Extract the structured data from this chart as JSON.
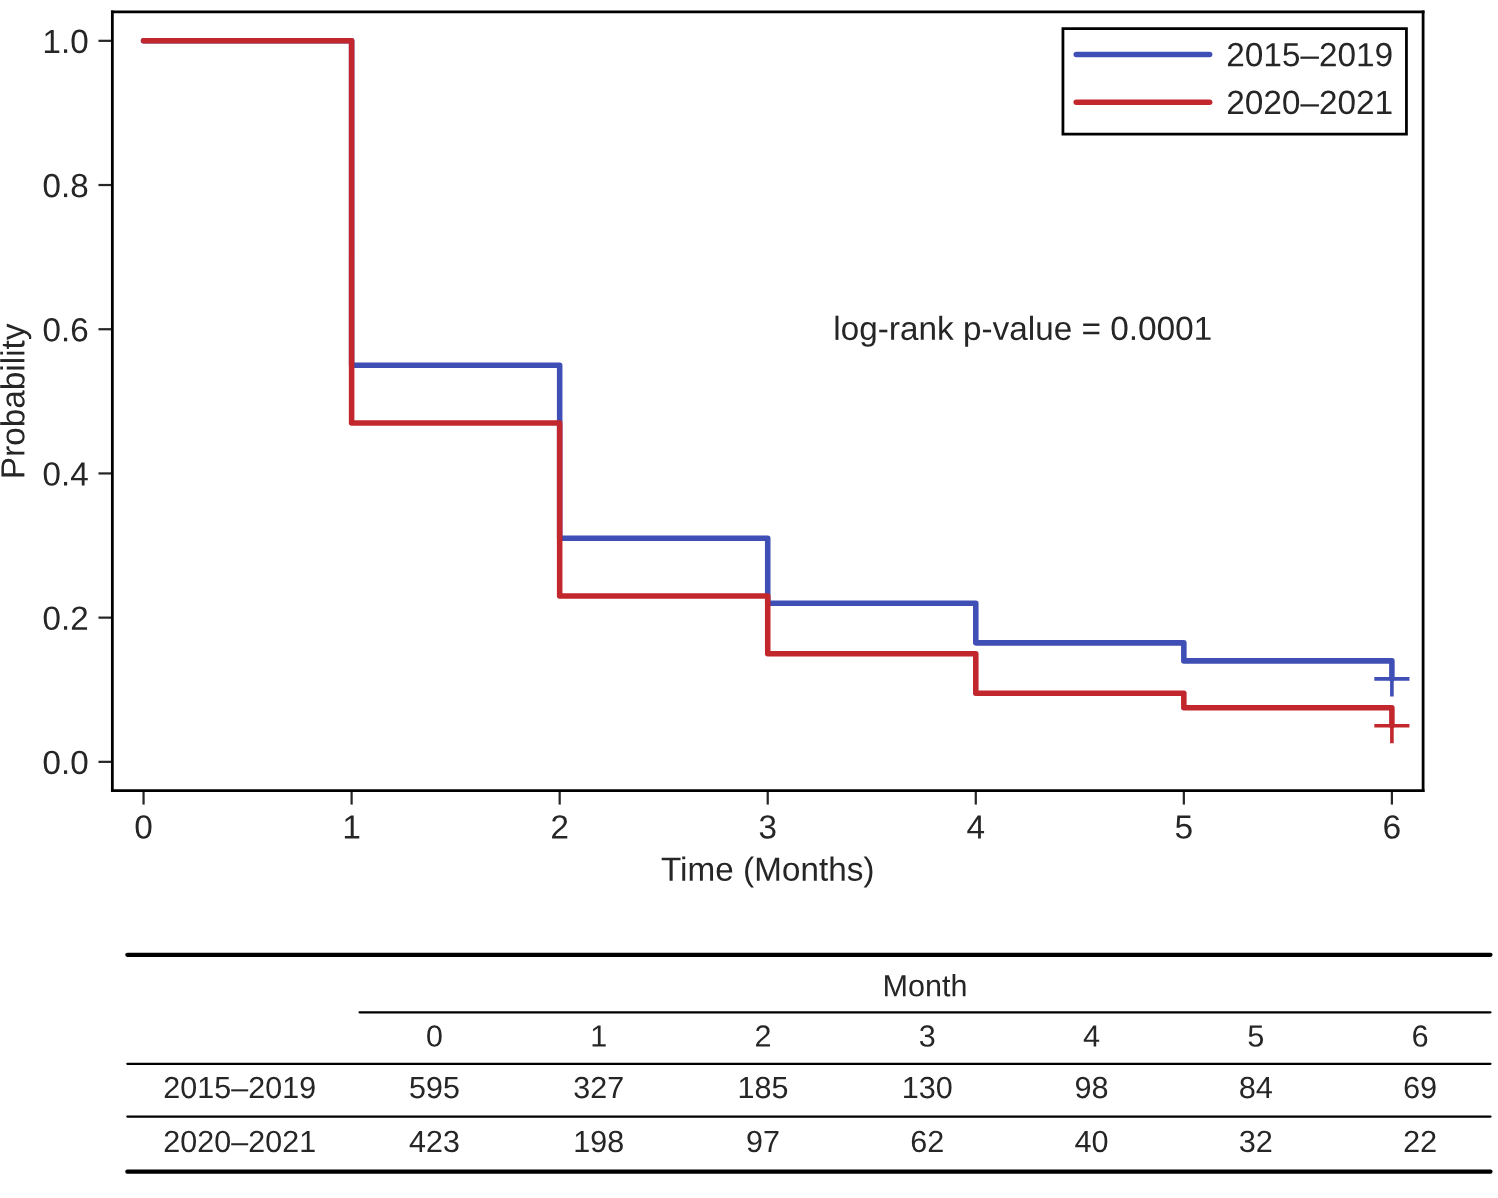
{
  "chart_data": {
    "type": "step",
    "ylabel": "Probability",
    "xlabel": "Time (Months)",
    "x": [
      0,
      1,
      2,
      3,
      4,
      5,
      6
    ],
    "series": [
      {
        "name": "2015–2019",
        "color": "#3f4fb5",
        "values": [
          1.0,
          0.55,
          0.31,
          0.22,
          0.165,
          0.14,
          0.115
        ]
      },
      {
        "name": "2020–2021",
        "color": "#c1272d",
        "values": [
          1.0,
          0.47,
          0.23,
          0.15,
          0.095,
          0.075,
          0.05
        ]
      },
      {
        "type": "scatter",
        "marker": "cross",
        "color": "#3f4fb5",
        "x": [
          6
        ],
        "values": [
          0.115
        ]
      },
      {
        "type": "scatter",
        "marker": "cross",
        "color": "#c1272d",
        "x": [
          6
        ],
        "values": [
          0.05
        ]
      }
    ],
    "xlim": [
      -0.15,
      6.15
    ],
    "ylim": [
      -0.04,
      1.04
    ],
    "xticks": [
      0,
      1,
      2,
      3,
      4,
      5,
      6
    ],
    "yticks": [
      {
        "value": 0,
        "label": "0.0"
      },
      {
        "value": 0.2,
        "label": "0.2"
      },
      {
        "value": 0.4,
        "label": "0.4"
      },
      {
        "value": 0.6,
        "label": "0.6"
      },
      {
        "value": 0.8,
        "label": "0.8"
      },
      {
        "value": 1.0,
        "label": "1.0"
      }
    ],
    "legend": "top right",
    "grid": false,
    "annotations": [
      "log-rank p-value = 0.0001",
      "Month",
      "0",
      "1",
      "2",
      "3",
      "4",
      "5",
      "6",
      "2015–2019",
      "595",
      "327",
      "185",
      "130",
      "98",
      "84",
      "69",
      "2020–2021",
      "423",
      "198",
      "97",
      "62",
      "40",
      "32",
      "22"
    ]
  }
}
